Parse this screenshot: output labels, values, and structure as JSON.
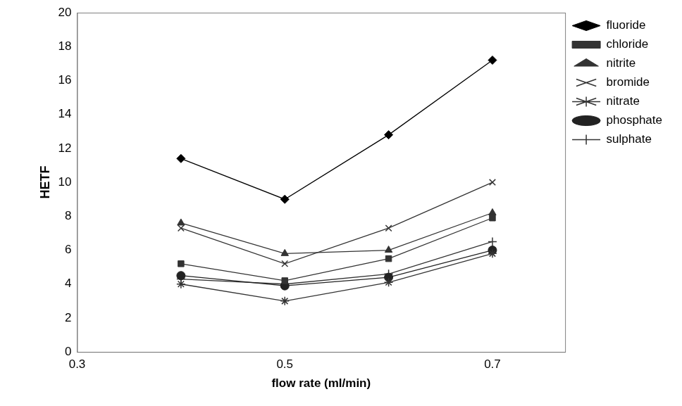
{
  "chart_data": {
    "type": "line",
    "x_label": "flow rate (ml/min)",
    "y_label": "HETF",
    "x": [
      0.4,
      0.5,
      0.6,
      0.7
    ],
    "xlim": [
      0.3,
      0.77
    ],
    "xticks": [
      0.3,
      0.5,
      0.7
    ],
    "ylim": [
      0,
      20
    ],
    "yticks": [
      0,
      2,
      4,
      6,
      8,
      10,
      12,
      14,
      16,
      18,
      20
    ],
    "grid": false,
    "legend": "right",
    "series": [
      {
        "name": "fluoride",
        "color": "#000000",
        "marker": "diamond",
        "values": [
          11.4,
          9.0,
          12.8,
          17.2
        ]
      },
      {
        "name": "chloride",
        "color": "#333333",
        "marker": "square",
        "values": [
          5.2,
          4.2,
          5.5,
          7.9
        ]
      },
      {
        "name": "nitrite",
        "color": "#333333",
        "marker": "triangle",
        "values": [
          7.6,
          5.8,
          6.0,
          8.2
        ]
      },
      {
        "name": "bromide",
        "color": "#333333",
        "marker": "x",
        "values": [
          7.3,
          5.2,
          7.3,
          10.0
        ]
      },
      {
        "name": "nitrate",
        "color": "#333333",
        "marker": "star",
        "values": [
          4.0,
          3.0,
          4.1,
          5.8
        ]
      },
      {
        "name": "phosphate",
        "color": "#222222",
        "marker": "circle",
        "values": [
          4.5,
          3.9,
          4.4,
          6.0
        ]
      },
      {
        "name": "sulphate",
        "color": "#333333",
        "marker": "plus",
        "values": [
          4.3,
          4.0,
          4.6,
          6.5
        ]
      }
    ]
  }
}
